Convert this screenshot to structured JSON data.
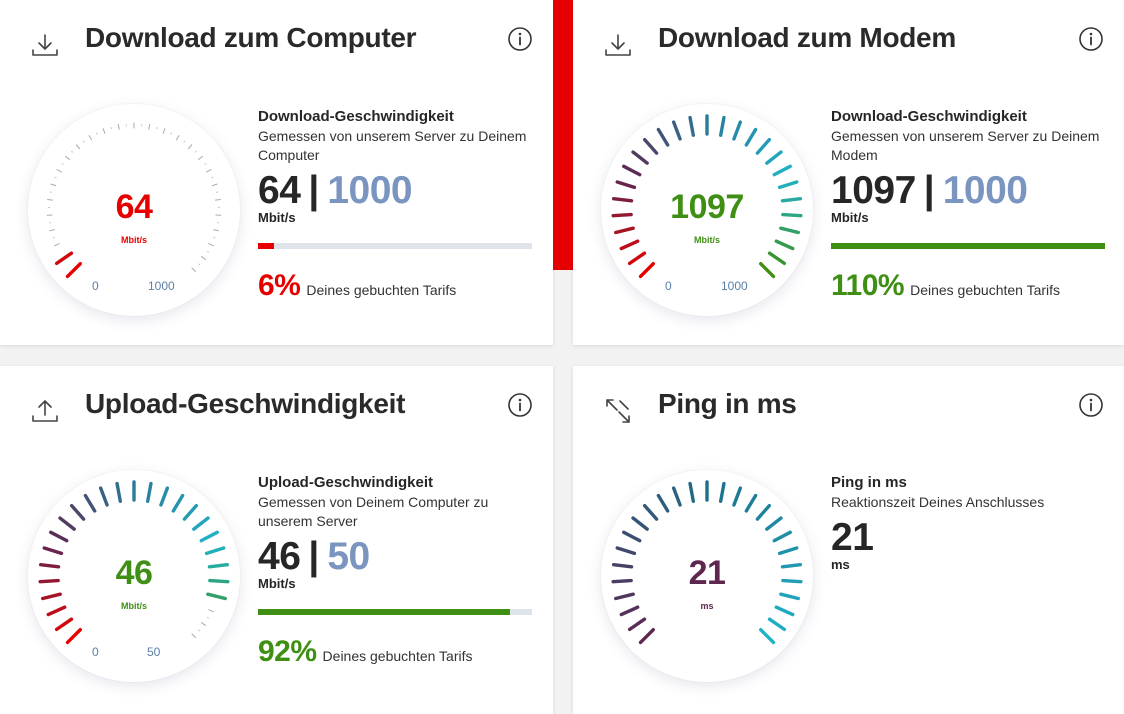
{
  "colors": {
    "red": "#e60000",
    "green": "#3f8f14",
    "purple": "#5e2750",
    "booked_blue": "#7a95bf",
    "track": "#dfe3ea"
  },
  "cards": {
    "download_computer": {
      "icon": "download-icon",
      "title": "Download zum Computer",
      "gauge": {
        "value": "64",
        "unit": "Mbit/s",
        "min": "0",
        "max": "1000",
        "fill": 0.064
      },
      "info_title": "Download-Geschwindigkeit",
      "info_desc": "Gemessen von unserem Server zu Deinem Computer",
      "measured": "64",
      "separator": "|",
      "booked": "1000",
      "unit": "Mbit/s",
      "progress": 0.06,
      "percent": "6%",
      "percent_label": "Deines gebuchten Tarifs"
    },
    "download_modem": {
      "icon": "download-icon",
      "title": "Download zum Modem",
      "gauge": {
        "value": "1097",
        "unit": "Mbit/s",
        "min": "0",
        "max": "1000",
        "fill": 1.0
      },
      "info_title": "Download-Geschwindigkeit",
      "info_desc": "Gemessen von unserem Server zu Deinem Modem",
      "measured": "1097",
      "separator": "|",
      "booked": "1000",
      "unit": "Mbit/s",
      "progress": 1.0,
      "percent": "110%",
      "percent_label": "Deines gebuchten Tarifs"
    },
    "upload": {
      "icon": "upload-icon",
      "title": "Upload-Geschwindigkeit",
      "gauge": {
        "value": "46",
        "unit": "Mbit/s",
        "min": "0",
        "max": "50",
        "fill": 0.92
      },
      "info_title": "Upload-Geschwindigkeit",
      "info_desc": "Gemessen von Deinem Computer zu unserem Server",
      "measured": "46",
      "separator": "|",
      "booked": "50",
      "unit": "Mbit/s",
      "progress": 0.92,
      "percent": "92%",
      "percent_label": "Deines gebuchten Tarifs"
    },
    "ping": {
      "icon": "ping-arrows-icon",
      "title": "Ping in ms",
      "gauge": {
        "value": "21",
        "unit": "ms",
        "fill": 1.0
      },
      "info_title": "Ping in ms",
      "info_desc": "Reaktionszeit Deines Anschlusses",
      "measured": "21",
      "unit": "ms"
    }
  }
}
